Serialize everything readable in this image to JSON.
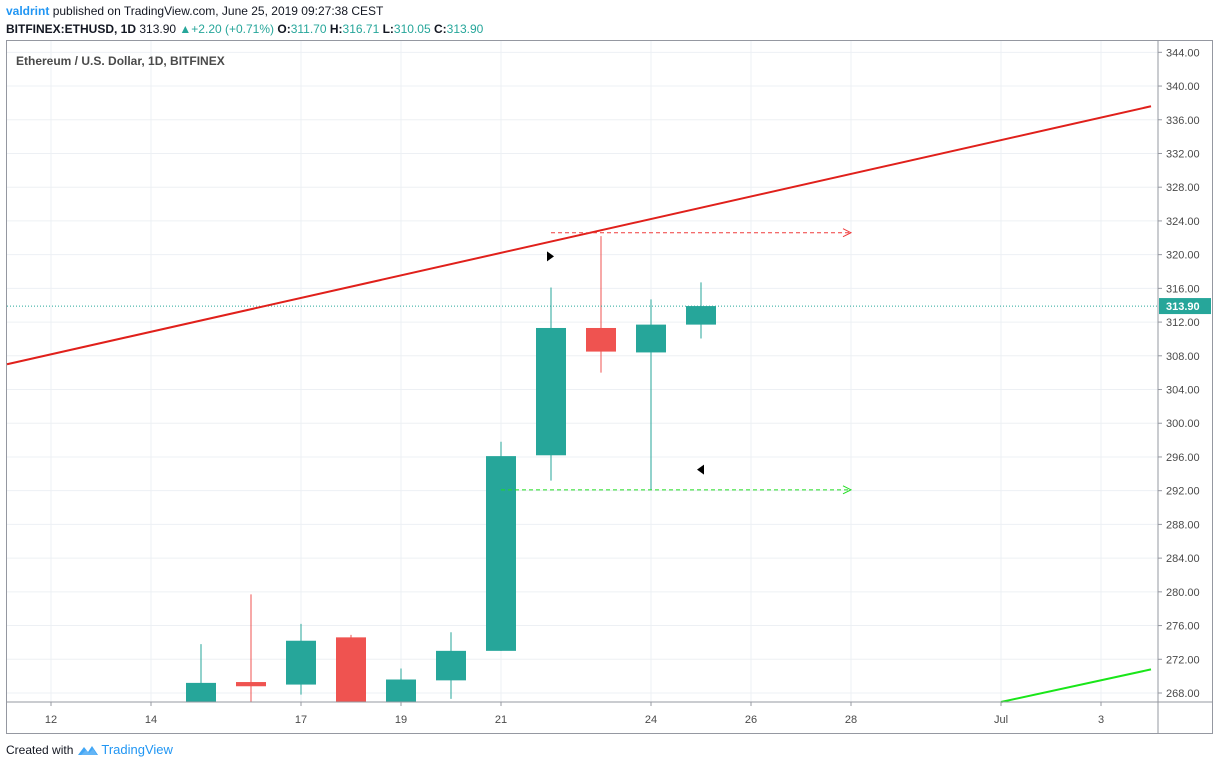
{
  "header": {
    "user": "valdrint",
    "published_text": "published on TradingView.com, June 25, 2019 09:27:38 CEST",
    "symbol": "BITFINEX:ETHUSD, 1D",
    "last": "313.90",
    "change": "+2.20 (+0.71%)",
    "o_label": "O:",
    "o_value": "311.70",
    "h_label": "H:",
    "h_value": "316.71",
    "l_label": "L:",
    "l_value": "310.05",
    "c_label": "C:",
    "c_value": "313.90"
  },
  "legend": "Ethereum / U.S. Dollar, 1D, BITFINEX",
  "footer": {
    "created_with": "Created with",
    "brand": "TradingView"
  },
  "colors": {
    "up": "#26a69a",
    "down": "#ef5350",
    "resistance": "#e0201b",
    "support": "#19e619",
    "price_line": "#26a69a"
  },
  "chart_data": {
    "type": "candlestick",
    "x_ticks": [
      "12",
      "14",
      "17",
      "19",
      "21",
      "24",
      "26",
      "28",
      "Jul",
      "3"
    ],
    "y_ticks": [
      "268.00",
      "272.00",
      "276.00",
      "280.00",
      "284.00",
      "288.00",
      "292.00",
      "296.00",
      "300.00",
      "304.00",
      "308.00",
      "312.00",
      "316.00",
      "320.00",
      "324.00",
      "328.00",
      "332.00",
      "336.00",
      "340.00",
      "344.00"
    ],
    "ylim": [
      266.5,
      345.5
    ],
    "last_price": 313.9,
    "last_price_label": "313.90",
    "candles": [
      {
        "date": "2019-06-15",
        "open": 266.5,
        "high": 273.8,
        "low": 266.5,
        "close": 269.2
      },
      {
        "date": "2019-06-16",
        "open": 269.3,
        "high": 279.7,
        "low": 266.5,
        "close": 268.8
      },
      {
        "date": "2019-06-17",
        "open": 269.0,
        "high": 276.2,
        "low": 267.8,
        "close": 274.2
      },
      {
        "date": "2019-06-18",
        "open": 274.6,
        "high": 274.9,
        "low": 266.5,
        "close": 266.5
      },
      {
        "date": "2019-06-19",
        "open": 266.5,
        "high": 270.9,
        "low": 266.5,
        "close": 269.6
      },
      {
        "date": "2019-06-20",
        "open": 269.5,
        "high": 275.2,
        "low": 267.3,
        "close": 273.0
      },
      {
        "date": "2019-06-21",
        "open": 273.0,
        "high": 297.8,
        "low": 273.0,
        "close": 296.1
      },
      {
        "date": "2019-06-22",
        "open": 296.2,
        "high": 316.1,
        "low": 293.2,
        "close": 311.3
      },
      {
        "date": "2019-06-23",
        "open": 311.3,
        "high": 322.2,
        "low": 306.0,
        "close": 308.5
      },
      {
        "date": "2019-06-24",
        "open": 308.4,
        "high": 314.7,
        "low": 292.1,
        "close": 311.7
      },
      {
        "date": "2019-06-25",
        "open": 311.7,
        "high": 316.71,
        "low": 310.05,
        "close": 313.9
      }
    ],
    "resistance_line": {
      "from": {
        "date": "2019-06-10",
        "price": 307.0
      },
      "to": {
        "date": "2019-07-04",
        "price": 337.6
      }
    },
    "support_line": {
      "from": {
        "date": "2019-07-01",
        "price": 266.5
      },
      "to": {
        "date": "2019-07-04",
        "price": 270.8
      }
    },
    "resistance_projection": {
      "from_date": "2019-06-22",
      "to_date": "2019-06-28",
      "price": 322.6
    },
    "support_projection": {
      "from_date": "2019-06-21",
      "to_date": "2019-06-28",
      "price": 292.1
    },
    "arrow_markers": [
      {
        "date": "2019-06-22",
        "price": 319.8,
        "direction": "right"
      },
      {
        "date": "2019-06-25",
        "price": 294.5,
        "direction": "left"
      }
    ]
  }
}
